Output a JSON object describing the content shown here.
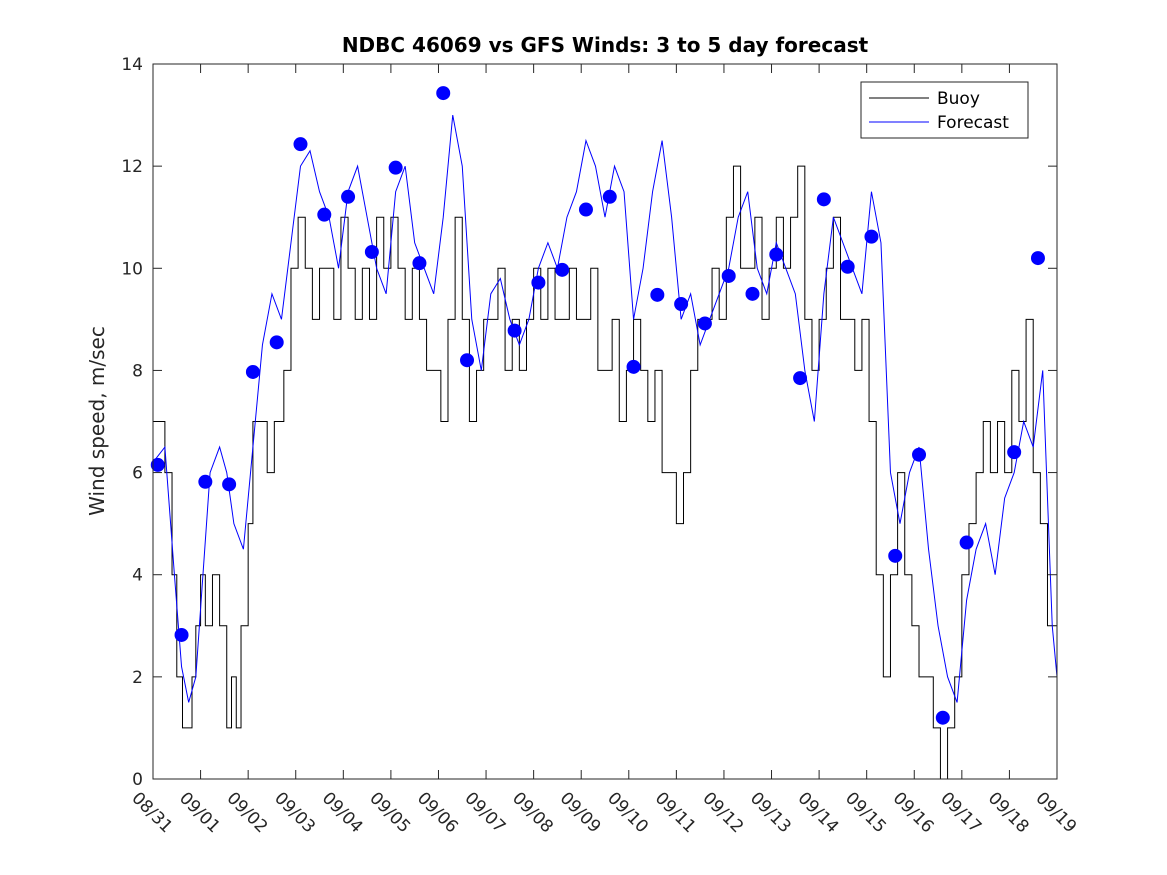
{
  "chart_data": {
    "type": "line",
    "title": "NDBC 46069 vs GFS Winds: 3 to 5 day forecast",
    "xlabel": "",
    "ylabel": "Wind speed, m/sec",
    "ylim": [
      0,
      14
    ],
    "xlim": [
      0,
      19
    ],
    "yticks": [
      0,
      2,
      4,
      6,
      8,
      10,
      12,
      14
    ],
    "xtick_labels": [
      "08/31",
      "09/01",
      "09/02",
      "09/03",
      "09/04",
      "09/05",
      "09/06",
      "09/07",
      "09/08",
      "09/09",
      "09/10",
      "09/11",
      "09/12",
      "09/13",
      "09/14",
      "09/15",
      "09/16",
      "09/17",
      "09/18",
      "09/19"
    ],
    "legend": {
      "position": "top-right",
      "entries": [
        "Buoy",
        "Forecast"
      ]
    },
    "colors": {
      "buoy": "#000000",
      "forecast": "#0000ff",
      "markers": "#0000ff"
    },
    "series": [
      {
        "name": "Buoy",
        "x": [
          0,
          0.25,
          0.4,
          0.5,
          0.62,
          0.7,
          0.82,
          0.9,
          1.0,
          1.1,
          1.25,
          1.4,
          1.55,
          1.65,
          1.75,
          1.85,
          2.0,
          2.1,
          2.25,
          2.4,
          2.55,
          2.75,
          2.9,
          3.05,
          3.2,
          3.35,
          3.5,
          3.65,
          3.8,
          3.95,
          4.1,
          4.25,
          4.4,
          4.55,
          4.7,
          4.85,
          5.0,
          5.15,
          5.3,
          5.45,
          5.6,
          5.75,
          5.9,
          6.05,
          6.2,
          6.35,
          6.5,
          6.65,
          6.8,
          6.95,
          7.1,
          7.25,
          7.4,
          7.55,
          7.7,
          7.85,
          8.0,
          8.15,
          8.3,
          8.45,
          8.6,
          8.75,
          8.9,
          9.05,
          9.2,
          9.35,
          9.5,
          9.65,
          9.8,
          9.95,
          10.1,
          10.25,
          10.4,
          10.55,
          10.7,
          10.85,
          11.0,
          11.15,
          11.3,
          11.45,
          11.6,
          11.75,
          11.9,
          12.05,
          12.2,
          12.35,
          12.5,
          12.65,
          12.8,
          12.95,
          13.1,
          13.25,
          13.4,
          13.55,
          13.7,
          13.85,
          14.0,
          14.15,
          14.3,
          14.45,
          14.6,
          14.75,
          14.9,
          15.05,
          15.2,
          15.35,
          15.5,
          15.65,
          15.8,
          15.95,
          16.1,
          16.25,
          16.4,
          16.55,
          16.7,
          16.85,
          17.0,
          17.15,
          17.3,
          17.45,
          17.6,
          17.75,
          17.9,
          18.05,
          18.2,
          18.35,
          18.5,
          18.65,
          18.8,
          19.0
        ],
        "y": [
          7,
          6,
          4,
          2,
          1,
          1,
          2,
          3,
          4,
          3,
          4,
          3,
          1,
          2,
          1,
          3,
          5,
          7,
          7,
          6,
          7,
          8,
          10,
          11,
          10,
          9,
          10,
          10,
          9,
          11,
          10,
          9,
          10,
          9,
          11,
          10,
          11,
          10,
          9,
          10,
          9,
          8,
          8,
          7,
          9,
          11,
          9,
          7,
          8,
          9,
          9,
          10,
          8,
          9,
          8,
          9,
          10,
          9,
          10,
          9,
          9,
          10,
          9,
          9,
          10,
          8,
          8,
          9,
          7,
          8,
          9,
          8,
          7,
          8,
          6,
          6,
          5,
          6,
          8,
          9,
          9,
          10,
          9,
          11,
          12,
          10,
          10,
          11,
          9,
          10,
          11,
          10,
          11,
          12,
          9,
          8,
          9,
          10,
          11,
          9,
          9,
          8,
          9,
          7,
          4,
          2,
          4,
          6,
          4,
          3,
          2,
          2,
          1,
          0,
          1,
          2,
          4,
          5,
          6,
          7,
          6,
          7,
          6,
          8,
          7,
          9,
          6,
          5,
          3,
          2
        ]
      },
      {
        "name": "Forecast",
        "x": [
          0,
          0.25,
          0.45,
          0.6,
          0.75,
          0.9,
          1.05,
          1.2,
          1.4,
          1.55,
          1.7,
          1.9,
          2.1,
          2.3,
          2.5,
          2.7,
          2.9,
          3.1,
          3.3,
          3.5,
          3.7,
          3.9,
          4.1,
          4.3,
          4.5,
          4.7,
          4.9,
          5.1,
          5.3,
          5.5,
          5.7,
          5.9,
          6.1,
          6.3,
          6.5,
          6.7,
          6.9,
          7.1,
          7.3,
          7.5,
          7.7,
          7.9,
          8.1,
          8.3,
          8.5,
          8.7,
          8.9,
          9.1,
          9.3,
          9.5,
          9.7,
          9.9,
          10.1,
          10.3,
          10.5,
          10.7,
          10.9,
          11.1,
          11.3,
          11.5,
          11.7,
          11.9,
          12.1,
          12.3,
          12.5,
          12.7,
          12.9,
          13.1,
          13.3,
          13.5,
          13.7,
          13.9,
          14.1,
          14.3,
          14.5,
          14.7,
          14.9,
          15.1,
          15.3,
          15.5,
          15.7,
          15.9,
          16.1,
          16.3,
          16.5,
          16.7,
          16.9,
          17.1,
          17.3,
          17.5,
          17.7,
          17.9,
          18.1,
          18.3,
          18.5,
          18.7,
          18.9,
          19.0
        ],
        "y": [
          6.2,
          6.5,
          4.0,
          2.2,
          1.5,
          2.0,
          4.0,
          6.0,
          6.5,
          6.0,
          5.0,
          4.5,
          6.5,
          8.5,
          9.5,
          9.0,
          10.5,
          12.0,
          12.3,
          11.5,
          11.0,
          10.0,
          11.5,
          12.0,
          11.0,
          10.0,
          9.5,
          11.5,
          12.0,
          10.5,
          10.0,
          9.5,
          11.0,
          13.0,
          12.0,
          9.0,
          8.0,
          9.5,
          9.8,
          9.0,
          8.5,
          9.0,
          10.0,
          10.5,
          10.0,
          11.0,
          11.5,
          12.5,
          12.0,
          11.0,
          12.0,
          11.5,
          9.0,
          10.0,
          11.5,
          12.5,
          11.0,
          9.0,
          9.5,
          8.5,
          9.0,
          9.5,
          10.0,
          11.0,
          11.5,
          10.0,
          9.5,
          10.5,
          10.0,
          9.5,
          8.0,
          7.0,
          9.5,
          11.0,
          10.5,
          10.0,
          9.5,
          11.5,
          10.5,
          6.0,
          5.0,
          6.0,
          6.5,
          4.5,
          3.0,
          2.0,
          1.5,
          3.5,
          4.5,
          5.0,
          4.0,
          5.5,
          6.0,
          7.0,
          6.5,
          8.0,
          3.0,
          2.0
        ]
      }
    ],
    "markers": {
      "name": "Forecast points",
      "x": [
        0.1,
        0.6,
        1.1,
        1.6,
        2.1,
        2.6,
        3.1,
        3.6,
        4.1,
        4.6,
        5.1,
        5.6,
        6.1,
        6.6,
        7.6,
        8.1,
        8.6,
        9.1,
        9.6,
        10.1,
        10.6,
        11.1,
        11.6,
        12.1,
        12.6,
        13.1,
        13.6,
        14.1,
        14.6,
        15.1,
        15.6,
        16.1,
        16.6,
        17.1,
        18.1,
        18.6
      ],
      "y": [
        6.15,
        2.82,
        5.82,
        5.77,
        7.97,
        8.55,
        12.43,
        11.05,
        11.4,
        10.32,
        11.97,
        10.1,
        13.43,
        8.2,
        8.78,
        9.72,
        9.97,
        11.15,
        11.4,
        8.07,
        9.48,
        9.3,
        8.92,
        9.85,
        9.5,
        10.27,
        7.85,
        11.35,
        10.03,
        10.62,
        4.37,
        6.35,
        1.2,
        4.63,
        6.4,
        10.2
      ]
    }
  }
}
